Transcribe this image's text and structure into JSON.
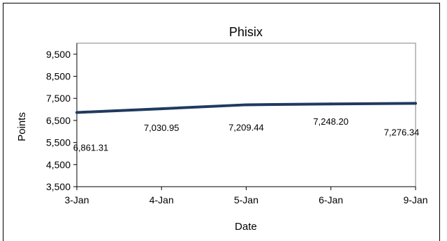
{
  "chart_data": {
    "type": "line",
    "title": "Phisix",
    "xlabel": "Date",
    "ylabel": "Points",
    "categories": [
      "3-Jan",
      "4-Jan",
      "5-Jan",
      "6-Jan",
      "9-Jan"
    ],
    "series": [
      {
        "values": [
          6861.31,
          7030.95,
          7209.44,
          7248.2,
          7276.34
        ],
        "value_labels": [
          "6,861.31",
          "7,030.95",
          "7,209.44",
          "7,248.20",
          "7,276.34"
        ],
        "color": "#1f3a5f"
      }
    ],
    "ylim": [
      3500,
      10000
    ],
    "y_ticks": [
      3500,
      4500,
      5500,
      6500,
      7500,
      8500,
      9500
    ],
    "y_tick_labels": [
      "3,500",
      "4,500",
      "5,500",
      "6,500",
      "7,500",
      "8,500",
      "9,500"
    ],
    "grid": false,
    "legend": "none"
  }
}
